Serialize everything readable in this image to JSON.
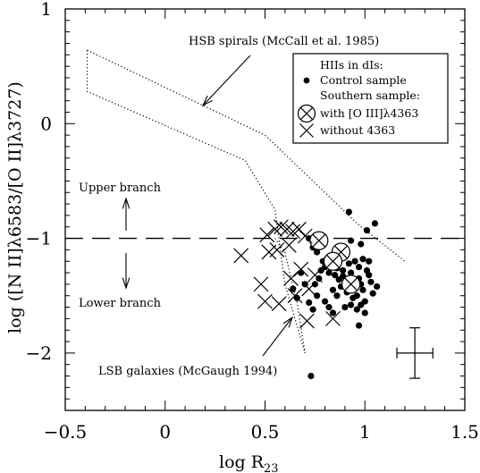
{
  "chart_data": {
    "type": "scatter",
    "xlabel": "log R",
    "xlabel_sub": "23",
    "ylabel": "log ([N II]λ6583/[O II]λ3727)",
    "xlim": [
      -0.5,
      1.5
    ],
    "ylim": [
      -2.5,
      1.0
    ],
    "xticks": [
      -0.5,
      0,
      0.5,
      1,
      1.5
    ],
    "xtick_labels": [
      "−0.5",
      "0",
      "0.5",
      "1",
      "1.5"
    ],
    "yticks": [
      -2,
      -1,
      0,
      1
    ],
    "ytick_labels": [
      "−2",
      "−1",
      "0",
      "1"
    ],
    "legend": {
      "title": "HIIs in dIs:",
      "entries": [
        {
          "marker": "dot",
          "label": "Control sample"
        },
        {
          "marker": "none",
          "label": "Southern sample:"
        },
        {
          "marker": "circle-x",
          "label": "with [O III]λ4363"
        },
        {
          "marker": "x",
          "label": "without 4363"
        }
      ],
      "placement": "top-right"
    },
    "annotations": {
      "hsb": "HSB spirals (McCall et al. 1985)",
      "lsb": "LSB galaxies (McGaugh 1994)",
      "upper": "Upper branch",
      "lower": "Lower branch"
    },
    "divider_y": -1.0,
    "error_bar": {
      "x": 1.25,
      "y": -2.0,
      "xerr": 0.09,
      "yerr": 0.22
    },
    "hsb_region": [
      [
        -0.39,
        0.64
      ],
      [
        0.5,
        -0.1
      ],
      [
        0.77,
        -0.55
      ],
      [
        0.96,
        -0.87
      ],
      [
        1.2,
        -1.2
      ],
      null,
      [
        -0.39,
        0.64
      ],
      [
        -0.39,
        0.28
      ],
      [
        0.4,
        -0.32
      ],
      [
        0.55,
        -0.75
      ],
      [
        0.6,
        -1.4
      ],
      [
        0.7,
        -2.0
      ]
    ],
    "lsb_region": [
      [
        0.55,
        -1.0
      ],
      [
        0.57,
        -1.05
      ],
      [
        0.6,
        -1.12
      ],
      [
        0.63,
        -1.35
      ],
      [
        0.66,
        -1.55
      ],
      [
        0.7,
        -2.0
      ]
    ],
    "series": [
      {
        "name": "Control sample",
        "marker": "dot",
        "points": [
          [
            0.92,
            -0.77
          ],
          [
            1.05,
            -0.87
          ],
          [
            1.01,
            -0.93
          ],
          [
            0.85,
            -1.15
          ],
          [
            0.93,
            -1.02
          ],
          [
            0.98,
            -1.05
          ],
          [
            0.72,
            -1.0
          ],
          [
            0.74,
            -1.08
          ],
          [
            0.76,
            -1.12
          ],
          [
            0.79,
            -1.2
          ],
          [
            0.8,
            -1.25
          ],
          [
            0.82,
            -1.3
          ],
          [
            0.85,
            -1.32
          ],
          [
            0.87,
            -1.36
          ],
          [
            0.89,
            -1.28
          ],
          [
            0.9,
            -1.4
          ],
          [
            0.92,
            -1.38
          ],
          [
            0.93,
            -1.3
          ],
          [
            0.94,
            -1.45
          ],
          [
            0.95,
            -1.42
          ],
          [
            0.96,
            -1.5
          ],
          [
            0.97,
            -1.35
          ],
          [
            0.98,
            -1.4
          ],
          [
            0.99,
            -1.45
          ],
          [
            1.0,
            -1.55
          ],
          [
            1.01,
            -1.28
          ],
          [
            1.02,
            -1.32
          ],
          [
            0.88,
            -1.42
          ],
          [
            0.86,
            -1.5
          ],
          [
            0.84,
            -1.45
          ],
          [
            0.83,
            -1.22
          ],
          [
            0.81,
            -1.18
          ],
          [
            0.78,
            -1.28
          ],
          [
            0.77,
            -1.35
          ],
          [
            0.75,
            -1.4
          ],
          [
            0.76,
            -1.5
          ],
          [
            0.8,
            -1.55
          ],
          [
            0.82,
            -1.6
          ],
          [
            0.84,
            -1.65
          ],
          [
            0.9,
            -1.6
          ],
          [
            0.93,
            -1.58
          ],
          [
            0.96,
            -1.62
          ],
          [
            0.98,
            -1.58
          ],
          [
            0.91,
            -1.47
          ],
          [
            0.94,
            -1.52
          ],
          [
            0.97,
            -1.25
          ],
          [
            0.95,
            -1.2
          ],
          [
            0.99,
            -1.18
          ],
          [
            1.02,
            -1.2
          ],
          [
            1.03,
            -1.38
          ],
          [
            1.06,
            -1.42
          ],
          [
            1.04,
            -1.48
          ],
          [
            0.92,
            -1.22
          ],
          [
            0.68,
            -1.3
          ],
          [
            0.7,
            -1.4
          ],
          [
            0.66,
            -1.52
          ],
          [
            0.72,
            -1.56
          ],
          [
            0.74,
            -1.62
          ],
          [
            0.88,
            -1.15
          ],
          [
            1.0,
            -1.65
          ],
          [
            0.97,
            -1.76
          ],
          [
            0.64,
            -1.44
          ],
          [
            0.86,
            -1.26
          ],
          [
            0.89,
            -1.33
          ],
          [
            0.93,
            -1.44
          ],
          [
            0.95,
            -1.37
          ],
          [
            0.73,
            -2.2
          ]
        ]
      },
      {
        "name": "with [O III]λ4363",
        "marker": "circle-x",
        "points": [
          [
            0.77,
            -1.02
          ],
          [
            0.88,
            -1.12
          ],
          [
            0.84,
            -1.2
          ],
          [
            0.93,
            -1.4
          ]
        ]
      },
      {
        "name": "without 4363",
        "marker": "x",
        "points": [
          [
            0.51,
            -0.97
          ],
          [
            0.55,
            -0.92
          ],
          [
            0.58,
            -0.9
          ],
          [
            0.61,
            -0.92
          ],
          [
            0.64,
            -0.94
          ],
          [
            0.67,
            -0.92
          ],
          [
            0.7,
            -0.98
          ],
          [
            0.52,
            -1.12
          ],
          [
            0.38,
            -1.15
          ],
          [
            0.48,
            -1.4
          ],
          [
            0.5,
            -1.55
          ],
          [
            0.57,
            -1.57
          ],
          [
            0.63,
            -1.35
          ],
          [
            0.68,
            -1.27
          ],
          [
            0.75,
            -1.32
          ],
          [
            0.72,
            -1.44
          ],
          [
            0.65,
            -1.5
          ],
          [
            0.71,
            -1.72
          ],
          [
            0.84,
            -1.7
          ],
          [
            0.56,
            -1.1
          ],
          [
            0.62,
            -1.06
          ]
        ]
      }
    ]
  }
}
